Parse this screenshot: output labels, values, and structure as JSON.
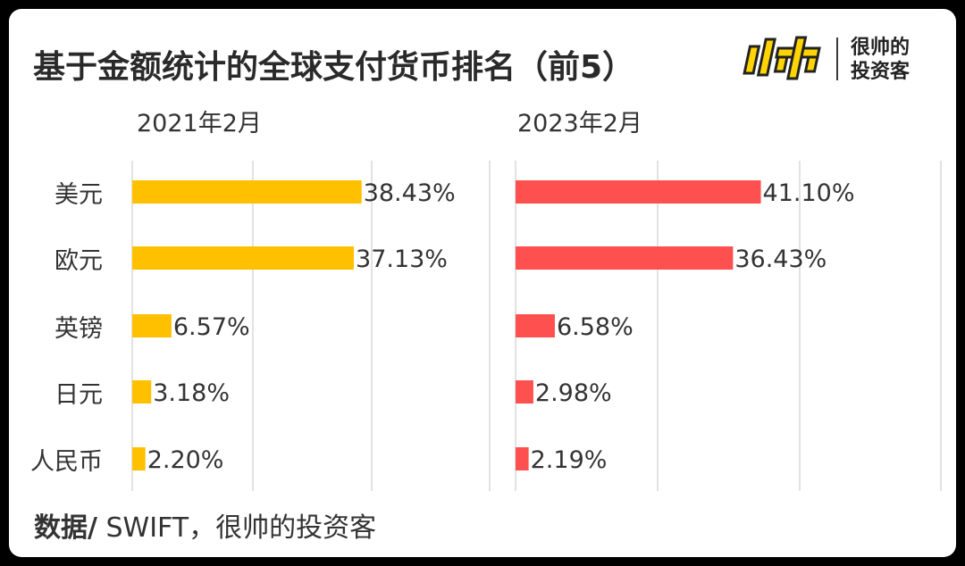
{
  "title": "基于金额统计的全球支付货币排名（前5）",
  "logo": {
    "mark_text": "帅",
    "line1": "很帅的",
    "line2": "投资客"
  },
  "source": {
    "prefix": "数据/",
    "text": " SWIFT，很帅的投资客"
  },
  "colors": {
    "left_bar": "#FFC000",
    "right_bar": "#FF5050",
    "grid": "#D9D9D9",
    "text": "#333333"
  },
  "chart_data": [
    {
      "type": "bar",
      "orientation": "horizontal",
      "title": "2021年2月",
      "categories": [
        "美元",
        "欧元",
        "英镑",
        "日元",
        "人民币"
      ],
      "values": [
        38.43,
        37.13,
        6.57,
        3.18,
        2.2
      ],
      "labels": [
        "38.43%",
        "37.13%",
        "6.57%",
        "3.18%",
        "2.20%"
      ],
      "xlim": [
        0,
        60
      ],
      "grid": true
    },
    {
      "type": "bar",
      "orientation": "horizontal",
      "title": "2023年2月",
      "categories": [
        "美元",
        "欧元",
        "英镑",
        "日元",
        "人民币"
      ],
      "values": [
        41.1,
        36.43,
        6.58,
        2.98,
        2.19
      ],
      "labels": [
        "41.10%",
        "36.43%",
        "6.58%",
        "2.98%",
        "2.19%"
      ],
      "xlim": [
        0,
        60
      ],
      "grid": true
    }
  ]
}
